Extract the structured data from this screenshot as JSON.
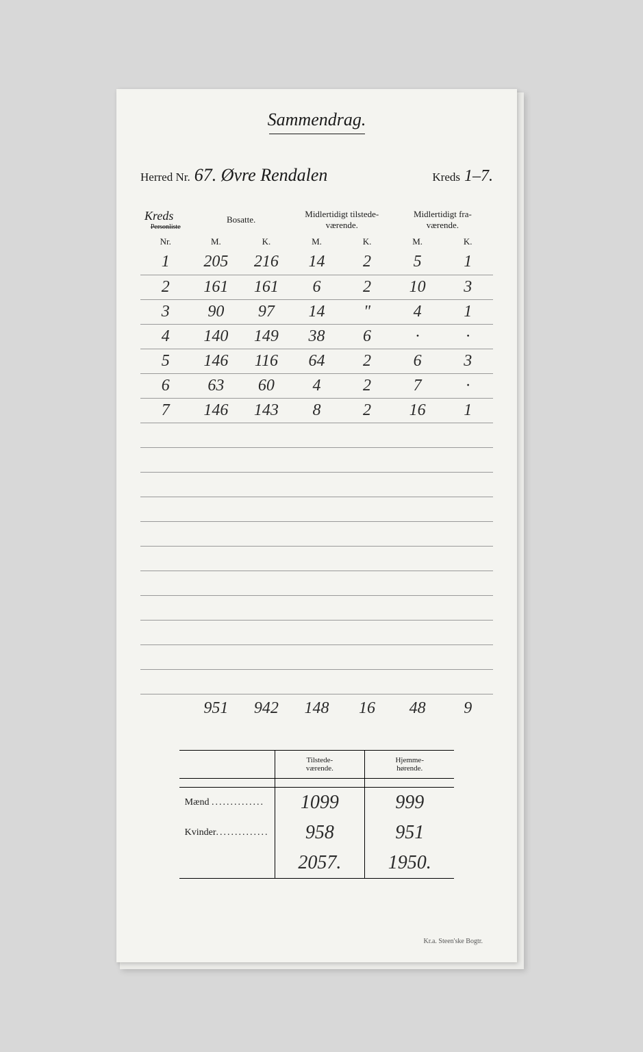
{
  "title": "Sammendrag.",
  "header": {
    "herred_label": "Herred Nr.",
    "herred_nr": "67.",
    "herred_name": "Øvre Rendalen",
    "kreds_label": "Kreds",
    "kreds_range": "1–7."
  },
  "table": {
    "corner_label_written": "Kreds",
    "corner_label_struck": "Personliste",
    "col_nr": "Nr.",
    "group_bosatte": "Bosatte.",
    "group_tilstede": "Midlertidigt tilstede-\nværende.",
    "group_fravaer": "Midlertidigt fra-\nværende.",
    "sub_m": "M.",
    "sub_k": "K.",
    "rows": [
      {
        "nr": "1",
        "bm": "205",
        "bk": "216",
        "tm": "14",
        "tk": "2",
        "fm": "5",
        "fk": "1"
      },
      {
        "nr": "2",
        "bm": "161",
        "bk": "161",
        "tm": "6",
        "tk": "2",
        "fm": "10",
        "fk": "3"
      },
      {
        "nr": "3",
        "bm": "90",
        "bk": "97",
        "tm": "14",
        "tk": "\"",
        "fm": "4",
        "fk": "1"
      },
      {
        "nr": "4",
        "bm": "140",
        "bk": "149",
        "tm": "38",
        "tk": "6",
        "fm": "·",
        "fk": "·"
      },
      {
        "nr": "5",
        "bm": "146",
        "bk": "116",
        "tm": "64",
        "tk": "2",
        "fm": "6",
        "fk": "3"
      },
      {
        "nr": "6",
        "bm": "63",
        "bk": "60",
        "tm": "4",
        "tk": "2",
        "fm": "7",
        "fk": "·"
      },
      {
        "nr": "7",
        "bm": "146",
        "bk": "143",
        "tm": "8",
        "tk": "2",
        "fm": "16",
        "fk": "1"
      }
    ],
    "blank_rows": 11,
    "totals": {
      "bm": "951",
      "bk": "942",
      "tm": "148",
      "tk": "16",
      "fm": "48",
      "fk": "9"
    }
  },
  "summary": {
    "col_tilstede": "Tilstede-\nværende.",
    "col_hjemme": "Hjemme-\nhørende.",
    "row_maend": "Mænd",
    "row_kvinder": "Kvinder",
    "vals": {
      "maend_tilstede": "1099",
      "maend_hjemme": "999",
      "kvinder_tilstede": "958",
      "kvinder_hjemme": "951",
      "total_tilstede": "2057.",
      "total_hjemme": "1950."
    }
  },
  "footer": "Kr.a. Steen'ske Bogtr.",
  "colors": {
    "page_bg": "#f4f4f0",
    "body_bg": "#d8d8d8",
    "ink": "#1a1a1a",
    "script": "#2a2a2a",
    "faint_rule": "#999"
  }
}
